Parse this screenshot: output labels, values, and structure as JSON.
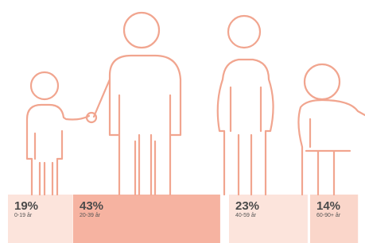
{
  "chart_data": {
    "type": "bar",
    "categories": [
      "0-19 år",
      "20-39 år",
      "40-59 år",
      "60-90+ år"
    ],
    "values": [
      19,
      43,
      23,
      14
    ],
    "value_labels": [
      "19%",
      "43%",
      "23%",
      "14%"
    ],
    "colors": [
      "#fce4dc",
      "#f6b3a1",
      "#fce4dc",
      "#fad6ca"
    ]
  }
}
